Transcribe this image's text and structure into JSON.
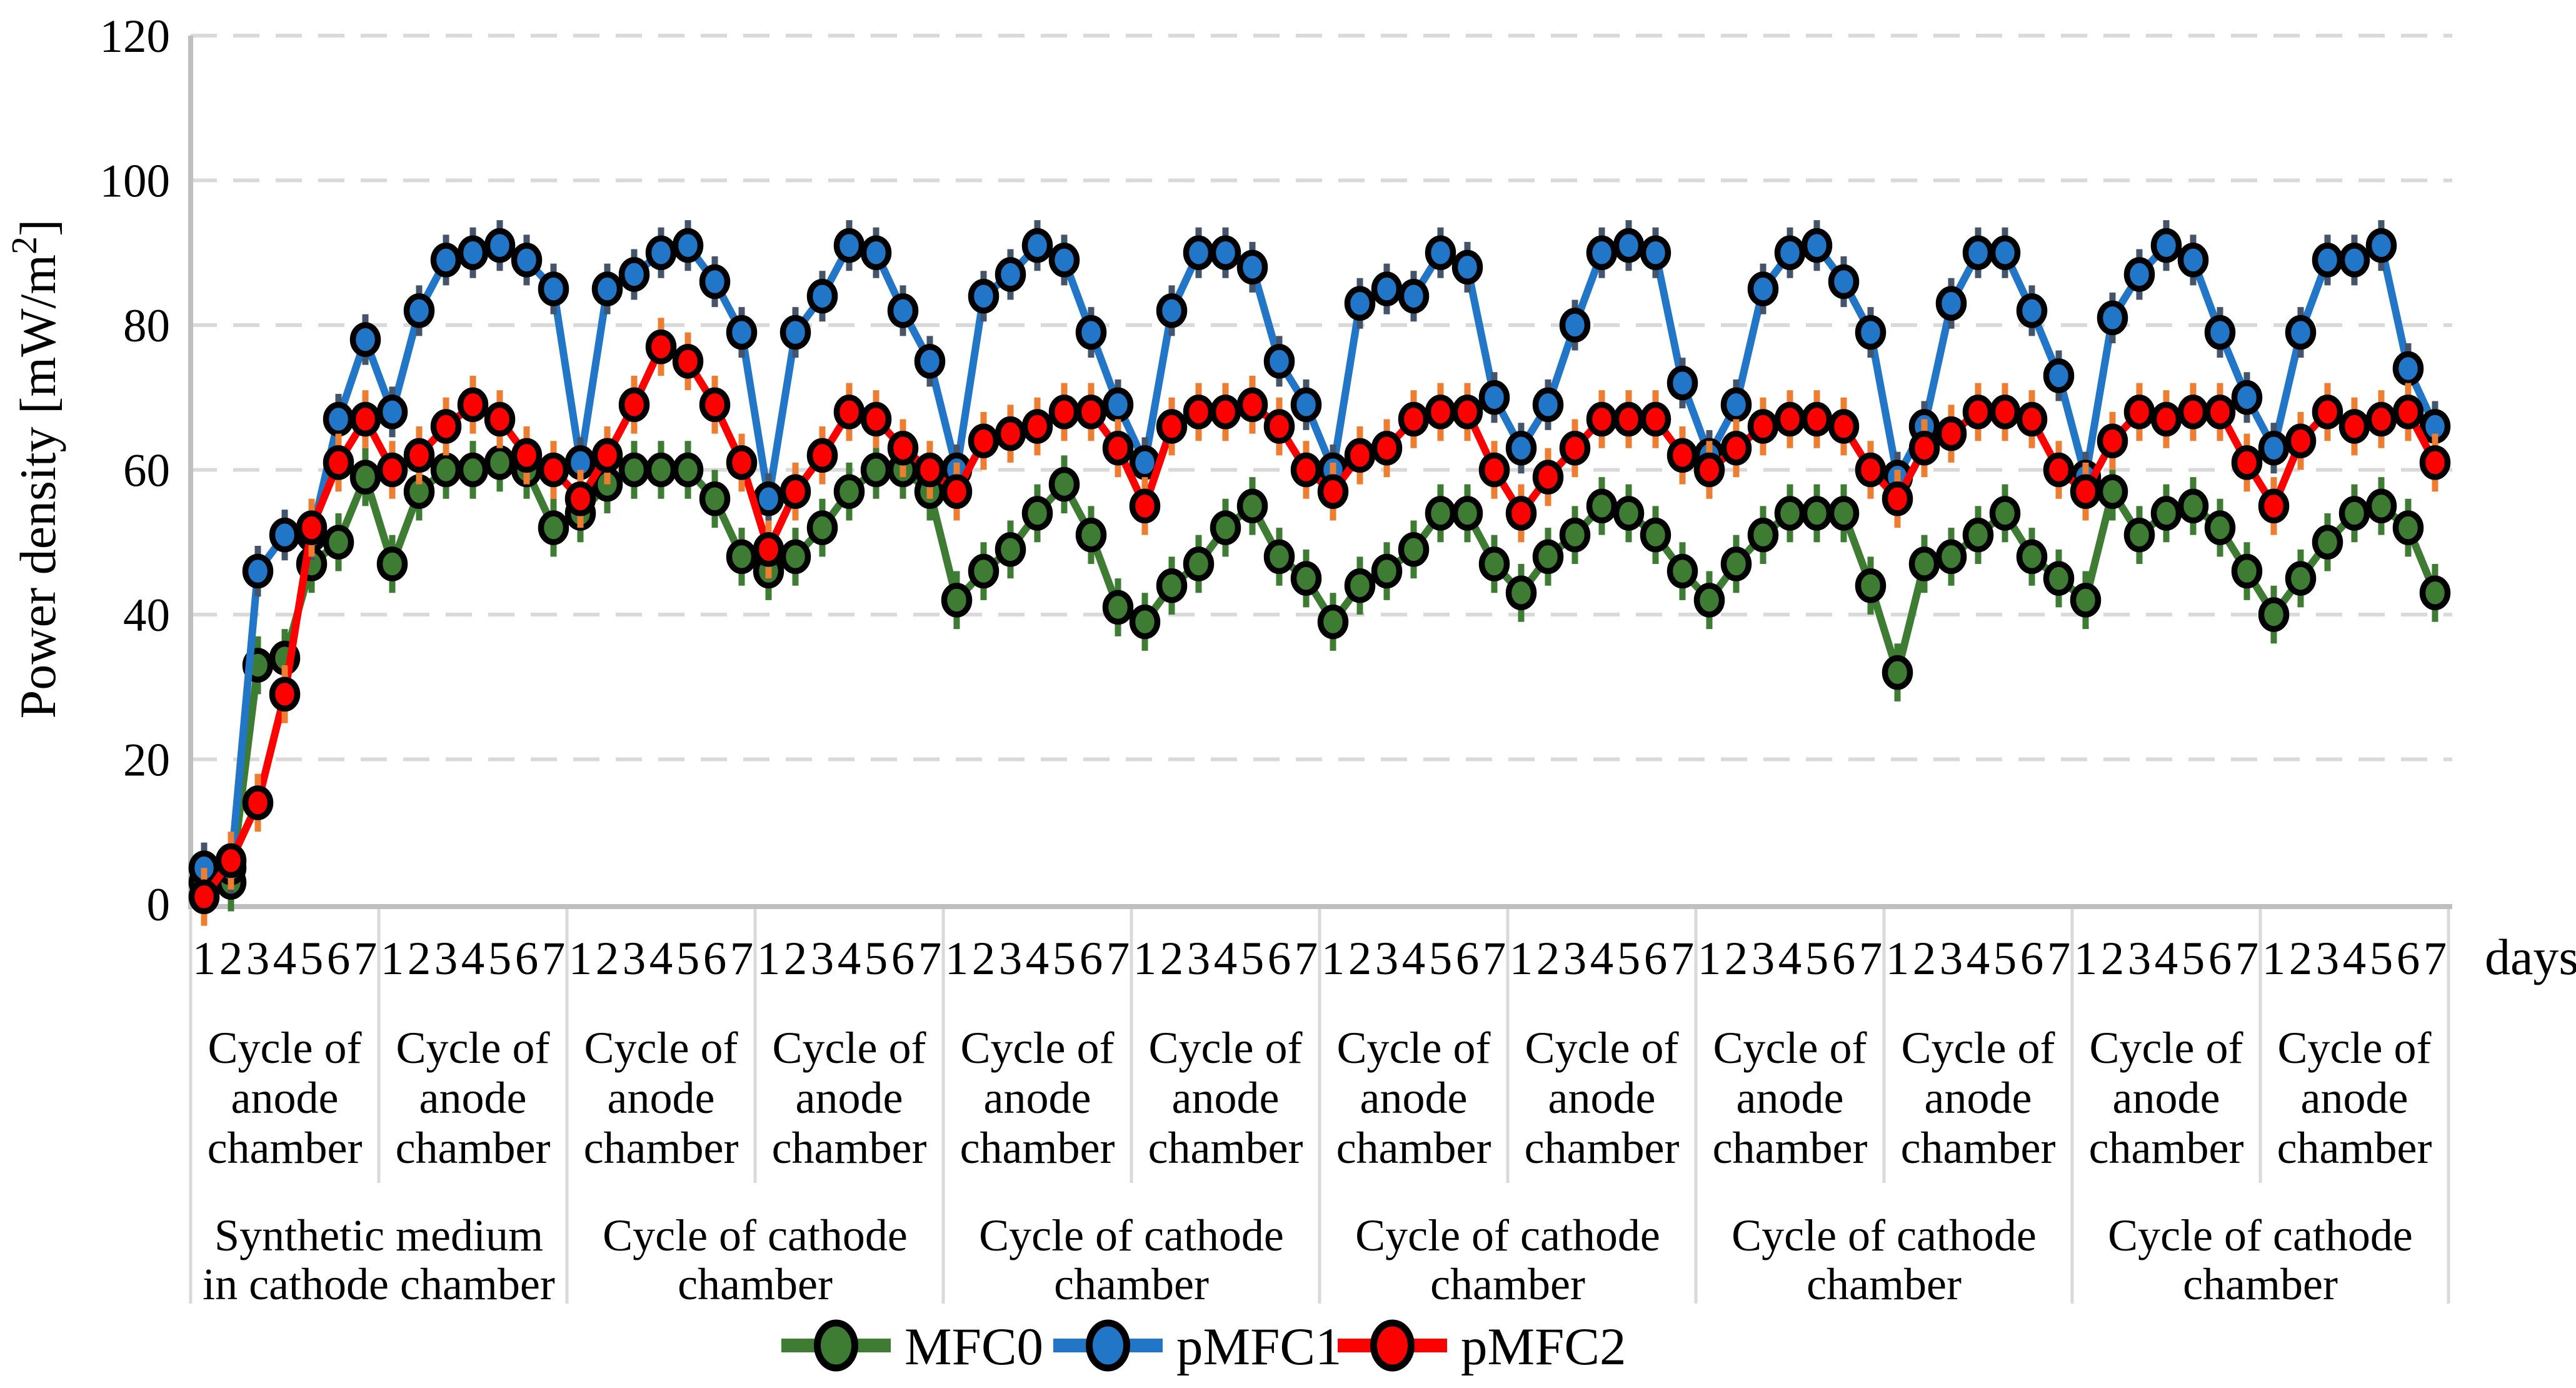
{
  "chart_data": {
    "type": "line",
    "title": "",
    "ylabel": "Power density [mW/m²]",
    "xlabel": "days",
    "ylim": [
      0,
      120
    ],
    "yticks": [
      0,
      20,
      40,
      60,
      80,
      100,
      120
    ],
    "grid": "horizontal-dashed",
    "legend_position": "bottom-center",
    "x_structure": {
      "cycles": 12,
      "days_per_cycle": 7,
      "day_labels": [
        "1",
        "2",
        "3",
        "4",
        "5",
        "6",
        "7"
      ],
      "cycle_label_lines": [
        "Cycle of",
        "anode",
        "chamber"
      ]
    },
    "group_labels": [
      {
        "lines": [
          "Synthetic medium",
          "in cathode chamber"
        ],
        "cycles_spanned": 2
      },
      {
        "lines": [
          "Cycle of cathode",
          "chamber"
        ],
        "cycles_spanned": 2
      },
      {
        "lines": [
          "Cycle of cathode",
          "chamber"
        ],
        "cycles_spanned": 2
      },
      {
        "lines": [
          "Cycle of cathode",
          "chamber"
        ],
        "cycles_spanned": 2
      },
      {
        "lines": [
          "Cycle of cathode",
          "chamber"
        ],
        "cycles_spanned": 2
      },
      {
        "lines": [
          "Cycle of cathode",
          "chamber"
        ],
        "cycles_spanned": 2
      }
    ],
    "series": [
      {
        "name": "MFC0",
        "color": "#3E7C33",
        "error_color": "#3E7C33",
        "error_halfheight": 4,
        "values_by_cycle": [
          [
            3,
            3,
            33,
            34,
            47,
            50,
            59
          ],
          [
            47,
            57,
            60,
            60,
            61,
            60,
            52
          ],
          [
            54,
            58,
            60,
            60,
            60,
            56,
            48
          ],
          [
            46,
            48,
            52,
            57,
            60,
            60,
            57
          ],
          [
            42,
            46,
            49,
            54,
            58,
            51,
            41
          ],
          [
            39,
            44,
            47,
            52,
            55,
            48,
            45
          ],
          [
            39,
            44,
            46,
            49,
            54,
            54,
            47
          ],
          [
            43,
            48,
            51,
            55,
            54,
            51,
            46
          ],
          [
            42,
            47,
            51,
            54,
            54,
            54,
            44
          ],
          [
            32,
            47,
            48,
            51,
            54,
            48,
            45
          ],
          [
            42,
            57,
            51,
            54,
            55,
            52,
            46
          ],
          [
            40,
            45,
            50,
            54,
            55,
            52,
            43
          ]
        ]
      },
      {
        "name": "pMFC1",
        "color": "#2176C7",
        "error_color": "#44546A",
        "error_halfheight": 3.5,
        "values_by_cycle": [
          [
            5,
            5,
            46,
            51,
            51,
            67,
            78
          ],
          [
            68,
            82,
            89,
            90,
            91,
            89,
            85
          ],
          [
            61,
            85,
            87,
            90,
            91,
            86,
            79
          ],
          [
            56,
            79,
            84,
            91,
            90,
            82,
            75
          ],
          [
            60,
            84,
            87,
            91,
            89,
            79,
            69
          ],
          [
            61,
            82,
            90,
            90,
            88,
            75,
            69
          ],
          [
            60,
            83,
            85,
            84,
            90,
            88,
            70
          ],
          [
            63,
            69,
            80,
            90,
            91,
            90,
            72
          ],
          [
            62,
            69,
            85,
            90,
            91,
            86,
            79
          ],
          [
            59,
            66,
            83,
            90,
            90,
            82,
            73
          ],
          [
            59,
            81,
            87,
            91,
            89,
            79,
            70
          ],
          [
            63,
            79,
            89,
            89,
            91,
            74,
            66
          ]
        ]
      },
      {
        "name": "pMFC2",
        "color": "#FF0000",
        "error_color": "#ED7D31",
        "error_halfheight": 4,
        "values_by_cycle": [
          [
            1,
            6,
            14,
            29,
            52,
            61,
            67
          ],
          [
            60,
            62,
            66,
            69,
            67,
            62,
            60
          ],
          [
            56,
            62,
            69,
            77,
            75,
            69,
            61
          ],
          [
            49,
            57,
            62,
            68,
            67,
            63,
            60
          ],
          [
            57,
            64,
            65,
            66,
            68,
            68,
            63
          ],
          [
            55,
            66,
            68,
            68,
            69,
            66,
            60
          ],
          [
            57,
            62,
            63,
            67,
            68,
            68,
            60
          ],
          [
            54,
            59,
            63,
            67,
            67,
            67,
            62
          ],
          [
            60,
            63,
            66,
            67,
            67,
            66,
            60
          ],
          [
            56,
            63,
            65,
            68,
            68,
            67,
            60
          ],
          [
            57,
            64,
            68,
            67,
            68,
            68,
            61
          ],
          [
            55,
            64,
            68,
            66,
            67,
            68,
            61
          ]
        ]
      }
    ],
    "legend": [
      {
        "label": "MFC0",
        "series": 0
      },
      {
        "label": "pMFC1",
        "series": 1
      },
      {
        "label": "pMFC2",
        "series": 2
      }
    ]
  },
  "style_colors": {
    "gridline": "#D9D9D9",
    "axis_line": "#BFBFBF",
    "separator": "#D9D9D9",
    "marker_outline": "#000000"
  }
}
